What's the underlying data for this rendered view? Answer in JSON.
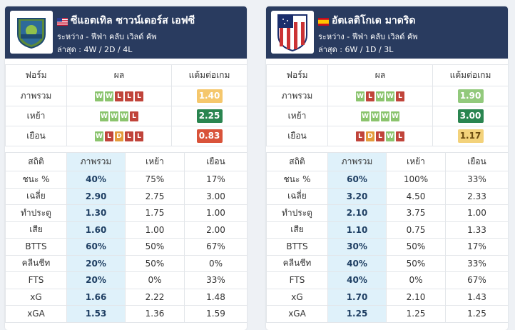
{
  "teams": [
    {
      "name": "ซีแอตเทิล ซาวน์เดอร์ส เอฟซี",
      "flag_icon": "usa-flag-icon",
      "competition": "ระหว่าง - ฟีฟ่า คลับ เวิลด์ คัพ",
      "record": "ล่าสุด : 4W / 2D / 4L",
      "form_headers": [
        "ฟอร์ม",
        "ผล",
        "แต้มต่อเกม"
      ],
      "form_rows": [
        {
          "label": "ภาพรวม",
          "results": [
            "W",
            "W",
            "L",
            "L",
            "L"
          ],
          "ppg": "1.40",
          "ppg_color": "light-orange"
        },
        {
          "label": "เหย้า",
          "results": [
            "W",
            "W",
            "W",
            "L"
          ],
          "ppg": "2.25",
          "ppg_color": "dark-green"
        },
        {
          "label": "เยือน",
          "results": [
            "W",
            "L",
            "D",
            "L",
            "L"
          ],
          "ppg": "0.83",
          "ppg_color": "red"
        }
      ],
      "stat_headers": [
        "สถิติ",
        "ภาพรวม",
        "เหย้า",
        "เยือน"
      ],
      "stats": [
        {
          "label": "ชนะ %",
          "overall": "40%",
          "home": "75%",
          "away": "17%"
        },
        {
          "label": "เฉลี่ย",
          "overall": "2.90",
          "home": "2.75",
          "away": "3.00"
        },
        {
          "label": "ทำประตู",
          "overall": "1.30",
          "home": "1.75",
          "away": "1.00"
        },
        {
          "label": "เสีย",
          "overall": "1.60",
          "home": "1.00",
          "away": "2.00"
        },
        {
          "label": "BTTS",
          "overall": "60%",
          "home": "50%",
          "away": "67%"
        },
        {
          "label": "คลีนชีท",
          "overall": "20%",
          "home": "50%",
          "away": "0%"
        },
        {
          "label": "FTS",
          "overall": "20%",
          "home": "0%",
          "away": "33%"
        },
        {
          "label": "xG",
          "overall": "1.66",
          "home": "2.22",
          "away": "1.48"
        },
        {
          "label": "xGA",
          "overall": "1.53",
          "home": "1.36",
          "away": "1.59"
        }
      ]
    },
    {
      "name": "อัตเลติโกเด มาดริด",
      "flag_icon": "spain-flag-icon",
      "competition": "ระหว่าง - ฟีฟ่า คลับ เวิลด์ คัพ",
      "record": "ล่าสุด : 6W / 1D / 3L",
      "form_headers": [
        "ฟอร์ม",
        "ผล",
        "แต้มต่อเกม"
      ],
      "form_rows": [
        {
          "label": "ภาพรวม",
          "results": [
            "W",
            "L",
            "W",
            "W",
            "L"
          ],
          "ppg": "1.90",
          "ppg_color": "light-green"
        },
        {
          "label": "เหย้า",
          "results": [
            "W",
            "W",
            "W",
            "W"
          ],
          "ppg": "3.00",
          "ppg_color": "dark-green"
        },
        {
          "label": "เยือน",
          "results": [
            "L",
            "D",
            "L",
            "W",
            "L"
          ],
          "ppg": "1.17",
          "ppg_color": "light-yellow"
        }
      ],
      "stat_headers": [
        "สถิติ",
        "ภาพรวม",
        "เหย้า",
        "เยือน"
      ],
      "stats": [
        {
          "label": "ชนะ %",
          "overall": "60%",
          "home": "100%",
          "away": "33%"
        },
        {
          "label": "เฉลี่ย",
          "overall": "3.20",
          "home": "4.50",
          "away": "2.33"
        },
        {
          "label": "ทำประตู",
          "overall": "2.10",
          "home": "3.75",
          "away": "1.00"
        },
        {
          "label": "เสีย",
          "overall": "1.10",
          "home": "0.75",
          "away": "1.33"
        },
        {
          "label": "BTTS",
          "overall": "30%",
          "home": "50%",
          "away": "17%"
        },
        {
          "label": "คลีนชีท",
          "overall": "40%",
          "home": "50%",
          "away": "33%"
        },
        {
          "label": "FTS",
          "overall": "40%",
          "home": "0%",
          "away": "67%"
        },
        {
          "label": "xG",
          "overall": "1.70",
          "home": "2.10",
          "away": "1.43"
        },
        {
          "label": "xGA",
          "overall": "1.25",
          "home": "1.25",
          "away": "1.25"
        }
      ]
    }
  ]
}
